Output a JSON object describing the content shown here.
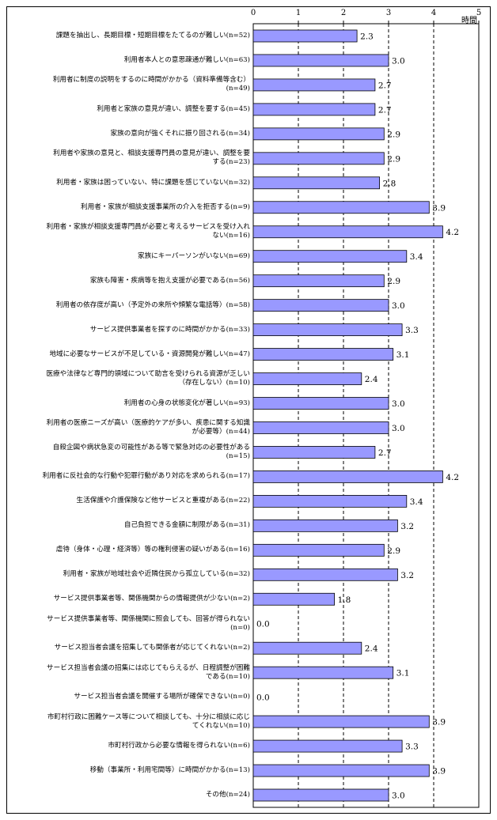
{
  "chart_data": {
    "type": "bar",
    "orientation": "horizontal",
    "unit_label": "時間",
    "xlim": [
      0,
      5
    ],
    "ticks": [
      "0",
      "1",
      "2",
      "3",
      "4",
      "5"
    ],
    "grid": "dashed vertical",
    "categories": [
      "課題を抽出し、長期目標・短期目標をたてるのが難しい(n=52)",
      "利用者本人との意思疎通が難しい(n=63)",
      "利用者に制度の説明をするのに時間がかかる（資料準備等含む）(n=49)",
      "利用者と家族の意見が違い、調整を要する(n=45)",
      "家族の意向が強くそれに振り回される(n=34)",
      "利用者や家族の意見と、相談支援専門員の意見が違い、調整を要する(n=23)",
      "利用者・家族は困っていない、特に課題を感じていない(n=32)",
      "利用者・家族が相談支援事業所の介入を拒否する(n=9)",
      "利用者・家族が相談支援専門員が必要と考えるサービスを受け入れない(n=16)",
      "家族にキーパーソンがいない(n=69)",
      "家族も障害・疾病等を抱え支援が必要である(n=56)",
      "利用者の依存度が高い（予定外の来所や頻繁な電話等）(n=58)",
      "サービス提供事業者を探すのに時間がかかる(n=33)",
      "地域に必要なサービスが不足している・資源開発が難しい(n=47)",
      "医療や法律など専門的領域について助言を受けられる資源が乏しい（存在しない）(n=10)",
      "利用者の心身の状態変化が著しい(n=93)",
      "利用者の医療ニーズが高い（医療的ケアが多い、疾患に関する知識が必要等）(n=44)",
      "自殺企図や病状急変の可能性がある等で緊急対応の必要性がある(n=15)",
      "利用者に反社会的な行動や犯罪行動があり対応を求められる(n=17)",
      "生活保護や介護保険など他サービスと重複がある(n=22)",
      "自己負担できる金額に制限がある(n=31)",
      "虐待（身体・心理・経済等）等の権利侵害の疑いがある(n=16)",
      "利用者・家族が地域社会や近隣住民から孤立している(n=32)",
      "サービス提供事業者等、関係機関からの情報提供が少ない(n=2)",
      "サービス提供事業者等、関係機関に照会しても、回答が得られない(n=0)",
      "サービス担当者会議を招集しても関係者が応じてくれない(n=2)",
      "サービス担当者会議の招集には応じてもらえるが、日程調整が困難である(n=10)",
      "サービス担当者会議を開催する場所が確保できない(n=0)",
      "市町村行政に困難ケース等について相談しても、十分に相談に応じてくれない(n=10)",
      "市町村行政から必要な情報を得られない(n=6)",
      "移動（事業所・利用宅間等）に時間がかかる(n=13)",
      "その他(n=24)"
    ],
    "label_lines": [
      [
        "課題を抽出し、長期目標・短期目標をたてるのが難しい(n=52)"
      ],
      [
        "利用者本人との意思疎通が難しい(n=63)"
      ],
      [
        "利用者に制度の説明をするのに時間がかかる（資料準備等含む）",
        "(n=49)"
      ],
      [
        "利用者と家族の意見が違い、調整を要する(n=45)"
      ],
      [
        "家族の意向が強くそれに振り回される(n=34)"
      ],
      [
        "利用者や家族の意見と、相談支援専門員の意見が違い、調整を要",
        "する(n=23)"
      ],
      [
        "利用者・家族は困っていない、特に課題を感じていない(n=32)"
      ],
      [
        "利用者・家族が相談支援事業所の介入を拒否する(n=9)"
      ],
      [
        "利用者・家族が相談支援専門員が必要と考えるサービスを受け入れ",
        "ない(n=16)"
      ],
      [
        "家族にキーパーソンがいない(n=69)"
      ],
      [
        "家族も障害・疾病等を抱え支援が必要である(n=56)"
      ],
      [
        "利用者の依存度が高い（予定外の来所や頻繁な電話等）(n=58)"
      ],
      [
        "サービス提供事業者を探すのに時間がかかる(n=33)"
      ],
      [
        "地域に必要なサービスが不足している・資源開発が難しい(n=47)"
      ],
      [
        "医療や法律など専門的領域について助言を受けられる資源が乏しい",
        "（存在しない）(n=10)"
      ],
      [
        "利用者の心身の状態変化が著しい(n=93)"
      ],
      [
        "利用者の医療ニーズが高い（医療的ケアが多い、疾患に関する知識",
        "が必要等）(n=44)"
      ],
      [
        "自殺企図や病状急変の可能性がある等で緊急対応の必要性がある",
        "(n=15)"
      ],
      [
        "利用者に反社会的な行動や犯罪行動があり対応を求められる(n=17)"
      ],
      [
        "生活保護や介護保険など他サービスと重複がある(n=22)"
      ],
      [
        "自己負担できる金額に制限がある(n=31)"
      ],
      [
        "虐待（身体・心理・経済等）等の権利侵害の疑いがある(n=16)"
      ],
      [
        "利用者・家族が地域社会や近隣住民から孤立している(n=32)"
      ],
      [
        "サービス提供事業者等、関係機関からの情報提供が少ない(n=2)"
      ],
      [
        "サービス提供事業者等、関係機関に照会しても、回答が得られない",
        "(n=0)"
      ],
      [
        "サービス担当者会議を招集しても関係者が応じてくれない(n=2)"
      ],
      [
        "サービス担当者会議の招集には応じてもらえるが、日程調整が困難",
        "である(n=10)"
      ],
      [
        "サービス担当者会議を開催する場所が確保できない(n=0)"
      ],
      [
        "市町村行政に困難ケース等について相談しても、十分に相談に応じ",
        "てくれない(n=10)"
      ],
      [
        "市町村行政から必要な情報を得られない(n=6)"
      ],
      [
        "移動（事業所・利用宅間等）に時間がかかる(n=13)"
      ],
      [
        "その他(n=24)"
      ]
    ],
    "values": [
      2.3,
      3.0,
      2.7,
      2.7,
      2.9,
      2.9,
      2.8,
      3.9,
      4.2,
      3.4,
      2.9,
      3.0,
      3.3,
      3.1,
      2.4,
      3.0,
      3.0,
      2.7,
      4.2,
      3.4,
      3.2,
      2.9,
      3.2,
      1.8,
      0.0,
      2.4,
      3.1,
      0.0,
      3.9,
      3.3,
      3.9,
      3.0
    ],
    "value_labels": [
      "2.3",
      "3.0",
      "2.7",
      "2.7",
      "2.9",
      "2.9",
      "2.8",
      "3.9",
      "4.2",
      "3.4",
      "2.9",
      "3.0",
      "3.3",
      "3.1",
      "2.4",
      "3.0",
      "3.0",
      "2.7",
      "4.2",
      "3.4",
      "3.2",
      "2.9",
      "3.2",
      "1.8",
      "0.0",
      "2.4",
      "3.1",
      "0.0",
      "3.9",
      "3.3",
      "3.9",
      "3.0"
    ],
    "colors": {
      "bar_fill": "#9999ff",
      "bar_stroke": "#000000",
      "grid": "#000000"
    }
  }
}
